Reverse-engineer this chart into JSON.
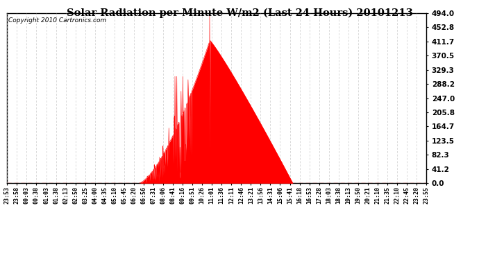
{
  "title": "Solar Radiation per Minute W/m2 (Last 24 Hours) 20101213",
  "copyright": "Copyright 2010 Cartronics.com",
  "background_color": "#ffffff",
  "plot_bg_color": "#ffffff",
  "bar_color": "#ff0000",
  "dashed_line_color": "#ff0000",
  "ymax": 494.0,
  "ymin": 0.0,
  "yticks": [
    0.0,
    41.2,
    82.3,
    123.5,
    164.7,
    205.8,
    247.0,
    288.2,
    329.3,
    370.5,
    411.7,
    452.8,
    494.0
  ],
  "x_labels": [
    "23:53",
    "23:58",
    "00:03",
    "00:38",
    "01:03",
    "01:38",
    "02:13",
    "02:50",
    "03:25",
    "04:00",
    "04:35",
    "05:10",
    "05:45",
    "06:20",
    "06:56",
    "07:31",
    "08:06",
    "08:41",
    "09:16",
    "09:51",
    "10:26",
    "11:01",
    "11:36",
    "12:11",
    "12:46",
    "13:21",
    "13:56",
    "14:31",
    "15:06",
    "15:41",
    "16:18",
    "16:53",
    "17:28",
    "18:03",
    "18:38",
    "19:13",
    "19:50",
    "20:21",
    "21:10",
    "21:35",
    "22:10",
    "22:45",
    "23:20",
    "23:55"
  ],
  "n_minutes": 1440,
  "sunrise_min": 451,
  "sunset_min": 981,
  "peak_min": 696,
  "spike_min": 695,
  "peak_smooth_val": 415.0,
  "spike_val": 494.0
}
